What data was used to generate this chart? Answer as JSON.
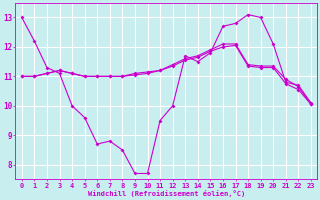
{
  "xlabel": "Windchill (Refroidissement éolien,°C)",
  "bg_color": "#c8eef0",
  "grid_color": "#ffffff",
  "line_color": "#cc00cc",
  "xlim": [
    -0.5,
    23.5
  ],
  "ylim": [
    7.5,
    13.5
  ],
  "yticks": [
    8,
    9,
    10,
    11,
    12,
    13
  ],
  "xticks": [
    0,
    1,
    2,
    3,
    4,
    5,
    6,
    7,
    8,
    9,
    10,
    11,
    12,
    13,
    14,
    15,
    16,
    17,
    18,
    19,
    20,
    21,
    22,
    23
  ],
  "series": [
    [
      13.0,
      12.2,
      11.3,
      11.1,
      10.0,
      9.6,
      8.7,
      8.8,
      8.5,
      7.7,
      7.7,
      9.5,
      10.0,
      11.7,
      11.5,
      11.8,
      12.7,
      12.8,
      13.1,
      13.0,
      12.1,
      10.8,
      10.7,
      10.1
    ],
    [
      11.0,
      11.0,
      11.1,
      11.2,
      11.1,
      11.0,
      11.0,
      11.0,
      11.0,
      11.1,
      11.15,
      11.2,
      11.4,
      11.6,
      11.7,
      11.9,
      12.1,
      12.1,
      11.4,
      11.35,
      11.35,
      10.9,
      10.65,
      10.05
    ],
    [
      11.0,
      11.0,
      11.1,
      11.2,
      11.1,
      11.0,
      11.0,
      11.0,
      11.0,
      11.05,
      11.1,
      11.2,
      11.35,
      11.55,
      11.65,
      11.85,
      12.0,
      12.05,
      11.35,
      11.3,
      11.3,
      10.75,
      10.55,
      10.05
    ]
  ]
}
